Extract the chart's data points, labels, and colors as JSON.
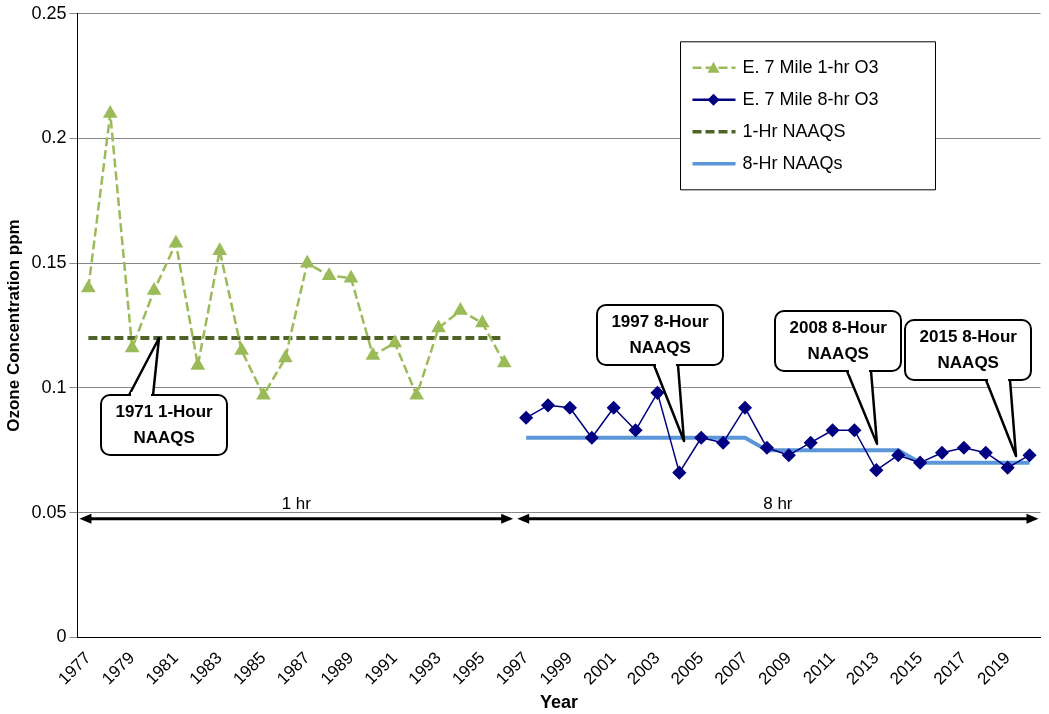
{
  "chart_data": {
    "type": "line",
    "xlabel": "Year",
    "ylabel": "Ozone Concentration ppm",
    "categories": [
      "1977",
      null,
      "1979",
      null,
      "1981",
      null,
      "1983",
      null,
      "1985",
      null,
      "1987",
      null,
      "1989",
      null,
      "1991",
      null,
      "1993",
      null,
      "1995",
      null,
      "1997",
      null,
      "1999",
      null,
      "2001",
      null,
      "2003",
      null,
      "2005",
      null,
      "2007",
      null,
      "2009",
      null,
      "2011",
      null,
      "2013",
      null,
      "2015",
      null,
      "2017",
      null,
      "2019",
      null
    ],
    "ylim": [
      0,
      0.25
    ],
    "yticks": [
      0,
      0.05,
      0.1,
      0.15,
      0.2,
      0.25
    ],
    "grid": "y",
    "legend": "top right",
    "series": [
      {
        "name": "E. 7 Mile 1-hr O3",
        "color": "#9bbb59",
        "marker": "triangle",
        "line_style": "dashed",
        "values": [
          0.14,
          0.21,
          0.116,
          0.139,
          0.158,
          0.109,
          0.155,
          0.115,
          0.097,
          0.112,
          0.15,
          0.145,
          0.144,
          0.113,
          0.118,
          0.097,
          0.124,
          0.131,
          0.126,
          0.11,
          null,
          null,
          null,
          null,
          null,
          null,
          null,
          null,
          null,
          null,
          null,
          null,
          null,
          null,
          null,
          null,
          null,
          null,
          null,
          null,
          null,
          null,
          null,
          null
        ]
      },
      {
        "name": "E. 7 Mile 8-hr O3",
        "color": "#000080",
        "marker": "diamond",
        "line_style": "solid",
        "values": [
          null,
          null,
          null,
          null,
          null,
          null,
          null,
          null,
          null,
          null,
          null,
          null,
          null,
          null,
          null,
          null,
          null,
          null,
          null,
          null,
          0.088,
          0.093,
          0.092,
          0.08,
          0.092,
          0.083,
          0.098,
          0.066,
          0.08,
          0.078,
          0.092,
          0.076,
          0.073,
          0.078,
          0.083,
          0.083,
          0.067,
          0.073,
          0.07,
          0.074,
          0.076,
          0.074,
          0.068,
          0.073
        ]
      },
      {
        "name": "1-Hr NAAQS",
        "color": "#4f6228",
        "marker": "none",
        "line_style": "dashed",
        "values": [
          0.12,
          0.12,
          0.12,
          0.12,
          0.12,
          0.12,
          0.12,
          0.12,
          0.12,
          0.12,
          0.12,
          0.12,
          0.12,
          0.12,
          0.12,
          0.12,
          0.12,
          0.12,
          0.12,
          0.12,
          null,
          null,
          null,
          null,
          null,
          null,
          null,
          null,
          null,
          null,
          null,
          null,
          null,
          null,
          null,
          null,
          null,
          null,
          null,
          null,
          null,
          null,
          null,
          null
        ]
      },
      {
        "name": "8-Hr NAAQs",
        "color": "#5b96d8",
        "marker": "none",
        "line_style": "solid",
        "values": [
          null,
          null,
          null,
          null,
          null,
          null,
          null,
          null,
          null,
          null,
          null,
          null,
          null,
          null,
          null,
          null,
          null,
          null,
          null,
          null,
          0.08,
          0.08,
          0.08,
          0.08,
          0.08,
          0.08,
          0.08,
          0.08,
          0.08,
          0.08,
          0.08,
          0.075,
          0.075,
          0.075,
          0.075,
          0.075,
          0.075,
          0.075,
          0.07,
          0.07,
          0.07,
          0.07,
          0.07,
          0.07
        ]
      }
    ],
    "annotations": [
      "1971 1-Hour NAAQS",
      "1997 8-Hour NAAQS",
      "2008 8-Hour NAAQS",
      "2015 8-Hour NAAQS",
      "1 hr",
      "8 hr"
    ]
  }
}
